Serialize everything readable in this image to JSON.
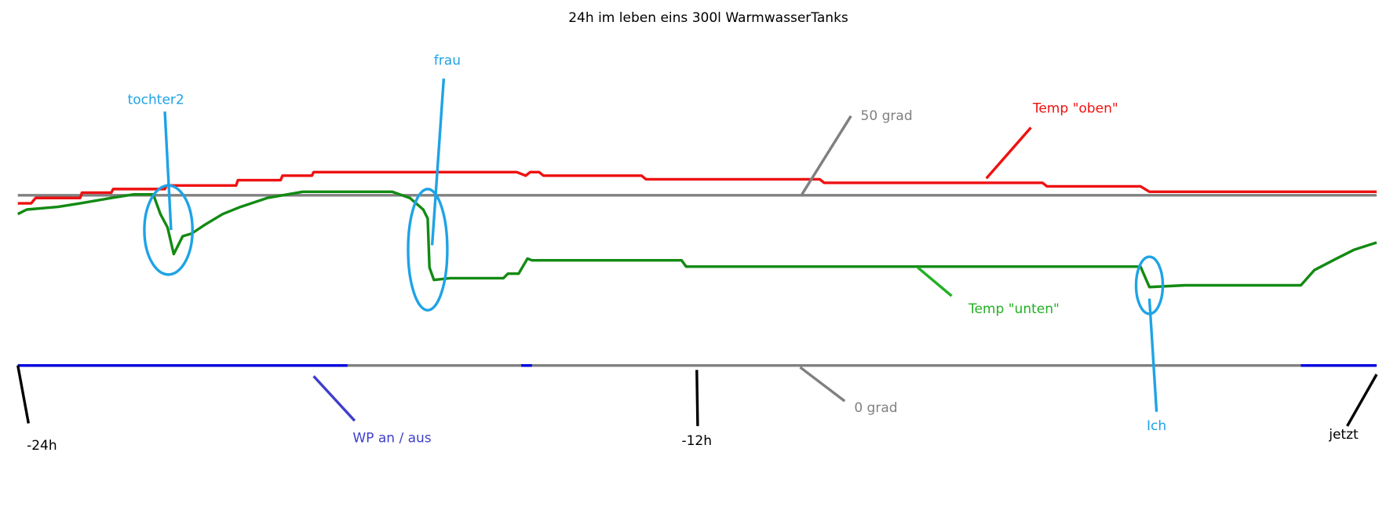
{
  "title": "24h im leben eins 300l WarmwasserTanks",
  "annotations": {
    "tochter2": "tochter2",
    "frau": "frau",
    "ich": "Ich",
    "upper_line": "50 grad",
    "lower_line": "0 grad",
    "temp_oben": "Temp \"oben\"",
    "temp_unten": "Temp \"unten\"",
    "wp": "WP an / aus"
  },
  "time_labels": [
    "-24h",
    "-12h",
    "jetzt"
  ]
}
